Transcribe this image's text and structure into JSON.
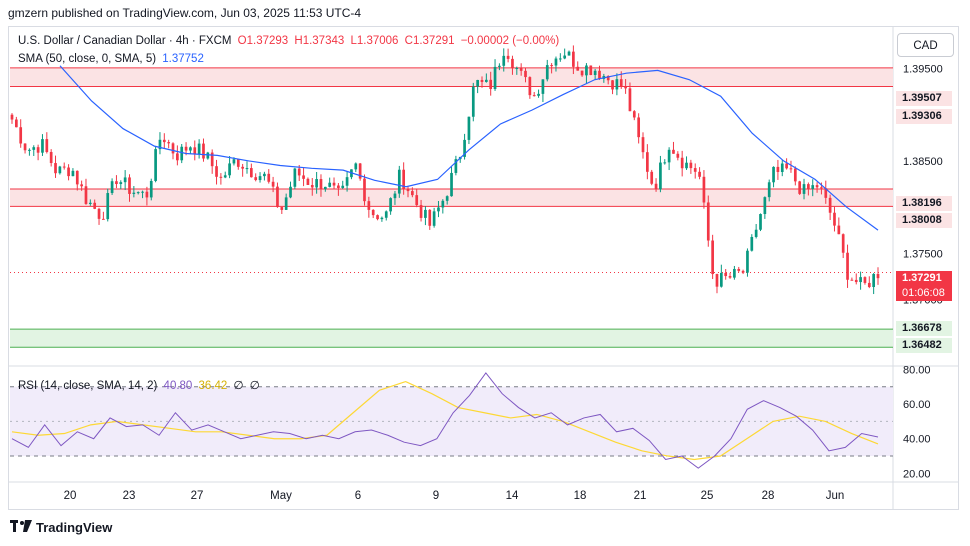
{
  "publisher": "gmzern published on TradingView.com, Jun 03, 2025 11:53 UTC-4",
  "currency_button": "CAD",
  "footer_brand": "TradingView",
  "legend": {
    "symbol": "U.S. Dollar / Canadian Dollar · 4h · FXCM",
    "open": "O1.37293",
    "high": "H1.37343",
    "low": "L1.37006",
    "close": "C1.37291",
    "change": "−0.00002 (−0.00%)",
    "sma_title": "SMA (50, close, 0, SMA, 5)",
    "sma_value": "1.37752",
    "rsi_title": "RSI (14, close, SMA, 14, 2)",
    "rsi_value": "40.80",
    "rsi_ma_value": "36.42",
    "rsi_extra_1": "∅",
    "rsi_extra_2": "∅"
  },
  "price_tags": {
    "r1": "1.39507",
    "r2": "1.39306",
    "r3": "1.38196",
    "r4": "1.38008",
    "last": "1.37291",
    "countdown": "01:06:08",
    "s1": "1.36678",
    "s2": "1.36482"
  },
  "colors": {
    "up": "#089981",
    "down": "#f23645",
    "sma": "#2962ff",
    "rsi": "#7e57c2",
    "rsi_ma": "#fdd835",
    "resistance_fill": "#fbe3e4",
    "support_fill": "#e2f4e3"
  },
  "chart_data": [
    {
      "type": "candlestick",
      "title": "U.S. Dollar / Canadian Dollar · 4h · FXCM",
      "x_tick_labels": [
        "20",
        "23",
        "27",
        "May",
        "6",
        "9",
        "14",
        "18",
        "21",
        "25",
        "28",
        "Jun"
      ],
      "y_tick_labels": [
        "1.37000",
        "1.37500",
        "1.38000",
        "1.38500",
        "1.39000",
        "1.39500"
      ],
      "ylim": [
        1.3629,
        1.3995
      ],
      "close_path": [
        1.3895,
        1.3862,
        1.3868,
        1.3838,
        1.3842,
        1.3808,
        1.379,
        1.3832,
        1.3818,
        1.3812,
        1.388,
        1.3856,
        1.3868,
        1.3855,
        1.383,
        1.3852,
        1.384,
        1.3832,
        1.3795,
        1.3838,
        1.3826,
        1.3826,
        1.381,
        1.3846,
        1.3795,
        1.3789,
        1.3835,
        1.3806,
        1.378,
        1.3812,
        1.3857,
        1.3935,
        1.393,
        1.3975,
        1.3944,
        1.392,
        1.396,
        1.3968,
        1.3952,
        1.395,
        1.3938,
        1.393,
        1.387,
        1.382,
        1.387,
        1.3848,
        1.3838,
        1.372,
        1.3723,
        1.373,
        1.3786,
        1.3836,
        1.384,
        1.3816,
        1.3824,
        1.3786,
        1.3727,
        1.3713,
        1.3729
      ],
      "ohlc_last": {
        "open": 1.37293,
        "high": 1.37343,
        "low": 1.37006,
        "close": 1.37291
      },
      "resistance_zones": [
        [
          1.39306,
          1.39507
        ],
        [
          1.38008,
          1.38196
        ]
      ],
      "support_zone": [
        1.36482,
        1.36678
      ],
      "series": [
        {
          "name": "SMA (50, close, 0, SMA, 5)",
          "last": 1.37752,
          "values": [
            1.3953,
            1.3915,
            1.3885,
            1.3866,
            1.3858,
            1.3856,
            1.385,
            1.3845,
            1.3842,
            1.384,
            1.3829,
            1.3822,
            1.383,
            1.3862,
            1.389,
            1.3905,
            1.3922,
            1.3938,
            1.3945,
            1.3948,
            1.3938,
            1.392,
            1.388,
            1.385,
            1.383,
            1.38,
            1.3775
          ]
        }
      ]
    },
    {
      "type": "line",
      "title": "RSI (14, close, SMA, 14, 2)",
      "y_tick_labels": [
        "20.00",
        "40.00",
        "60.00",
        "80.00"
      ],
      "ylim": [
        15,
        82
      ],
      "bands": [
        30,
        50,
        70
      ],
      "series": [
        {
          "name": "RSI",
          "last": 40.8,
          "values": [
            40,
            35,
            48,
            36,
            44,
            40,
            52,
            47,
            48,
            42,
            55,
            45,
            48,
            44,
            40,
            42,
            44,
            43,
            40,
            42,
            40,
            44,
            45,
            42,
            38,
            36,
            40,
            55,
            65,
            78,
            66,
            58,
            52,
            55,
            48,
            52,
            54,
            44,
            46,
            39,
            28,
            30,
            23,
            30,
            40,
            57,
            62,
            58,
            53,
            45,
            33,
            35,
            43,
            41
          ]
        },
        {
          "name": "RSI MA",
          "last": 36.42,
          "values": [
            44,
            42,
            43,
            48,
            50,
            48,
            46,
            44,
            44,
            42,
            40,
            40,
            42,
            55,
            68,
            73,
            66,
            58,
            55,
            52,
            54,
            50,
            44,
            38,
            33,
            30,
            28,
            30,
            40,
            50,
            53,
            50,
            43,
            37
          ]
        }
      ]
    }
  ]
}
